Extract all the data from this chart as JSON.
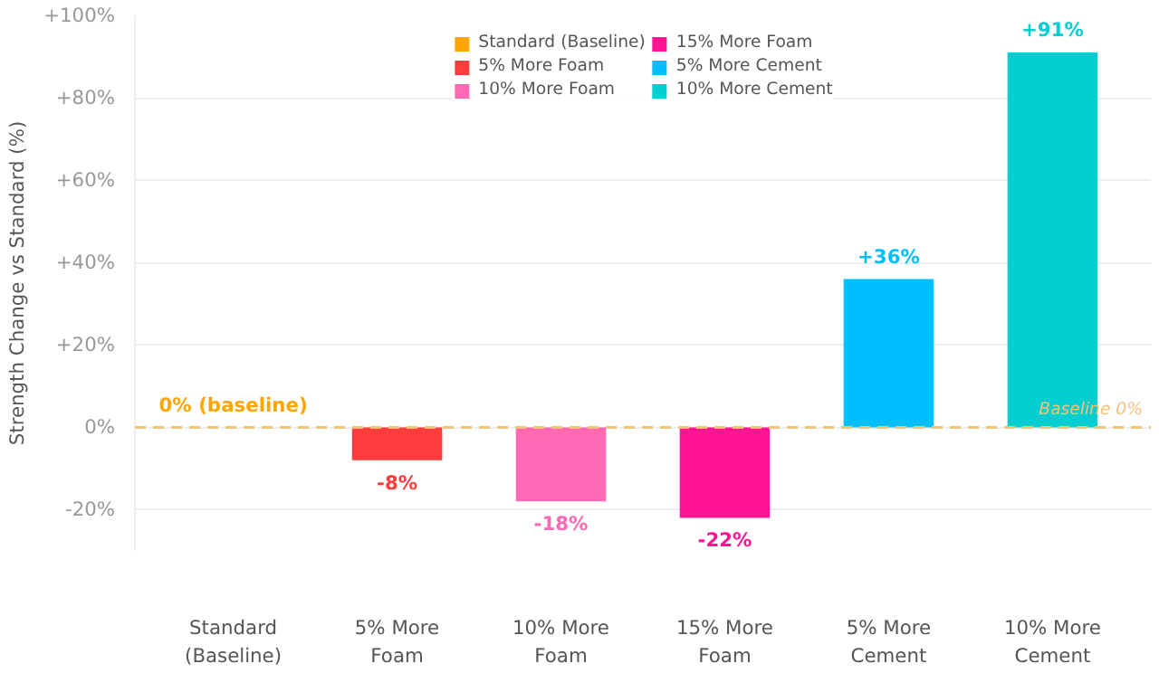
{
  "chart_data": {
    "type": "bar",
    "ylabel": "Strength Change vs Standard (%)",
    "categories": [
      "Standard\n(Baseline)",
      "5% More\nFoam",
      "10% More\nFoam",
      "15% More\nFoam",
      "5% More\nCement",
      "10% More\nCement"
    ],
    "series": [
      {
        "name": "Standard (Baseline)",
        "color": "#ffa500",
        "values": [
          0,
          null,
          null,
          null,
          null,
          null
        ],
        "value_labels": [
          "0% (baseline)",
          null,
          null,
          null,
          null,
          null
        ]
      },
      {
        "name": "5% More Foam",
        "color": "#ff3b3b",
        "values": [
          null,
          -8,
          null,
          null,
          null,
          null
        ],
        "value_labels": [
          null,
          "-8%",
          null,
          null,
          null,
          null
        ]
      },
      {
        "name": "10% More Foam",
        "color": "#ff69b4",
        "values": [
          null,
          null,
          -18,
          null,
          null,
          null
        ],
        "value_labels": [
          null,
          null,
          "-18%",
          null,
          null,
          null
        ]
      },
      {
        "name": "15% More Foam",
        "color": "#ff1493",
        "values": [
          null,
          null,
          null,
          -22,
          null,
          null
        ],
        "value_labels": [
          null,
          null,
          null,
          "-22%",
          null,
          null
        ]
      },
      {
        "name": "5% More Cement",
        "color": "#00bfff",
        "values": [
          null,
          null,
          null,
          null,
          36,
          null
        ],
        "value_labels": [
          null,
          null,
          null,
          null,
          "+36%",
          null
        ]
      },
      {
        "name": "10% More Cement",
        "color": "#00ced1",
        "values": [
          null,
          null,
          null,
          null,
          null,
          91
        ],
        "value_labels": [
          null,
          null,
          null,
          null,
          null,
          "+91%"
        ]
      }
    ],
    "ylim": [
      -30,
      100
    ],
    "yticks": [
      {
        "value": -20,
        "label": "-20%"
      },
      {
        "value": 0,
        "label": "0%"
      },
      {
        "value": 20,
        "label": "+20%"
      },
      {
        "value": 40,
        "label": "+40%"
      },
      {
        "value": 60,
        "label": "+60%"
      },
      {
        "value": 80,
        "label": "+80%"
      },
      {
        "value": 100,
        "label": "+100%"
      }
    ],
    "ref_lines": [
      {
        "axis": "y",
        "value": 0,
        "label": "Baseline 0%",
        "color": "#f5c27a",
        "line_style": "dashed"
      }
    ],
    "grid": "y",
    "legend": "top"
  }
}
